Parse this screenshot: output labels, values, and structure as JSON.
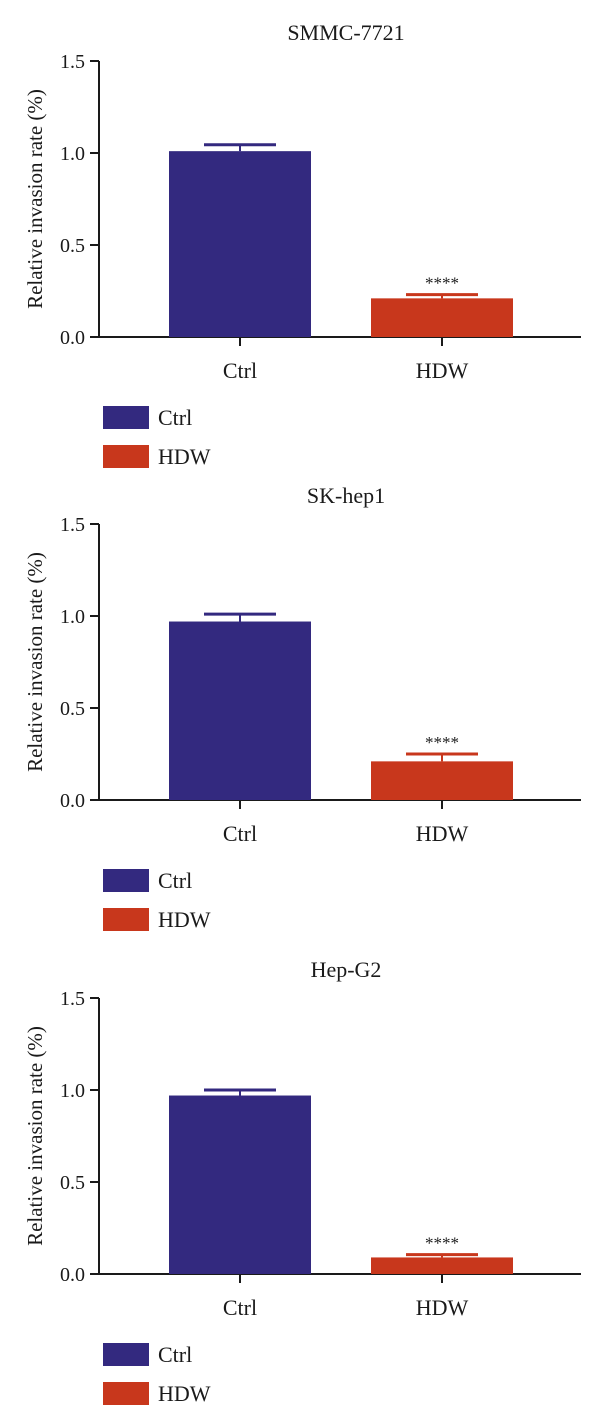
{
  "chart_data": [
    {
      "type": "bar",
      "title": "SMMC-7721",
      "ylabel": "Relative invasion rate (%)",
      "categories": [
        "Ctrl",
        "HDW"
      ],
      "values": [
        1.01,
        0.21
      ],
      "errors": [
        0.035,
        0.02
      ],
      "significance": [
        "",
        "****"
      ],
      "ylim": [
        0,
        1.5
      ],
      "yticks": [
        "0.0",
        "0.5",
        "1.0",
        "1.5"
      ],
      "legend": [
        "Ctrl",
        "HDW"
      ],
      "legend_position": "bottom-left"
    },
    {
      "type": "bar",
      "title": "SK-hep1",
      "ylabel": "Relative invasion rate (%)",
      "categories": [
        "Ctrl",
        "HDW"
      ],
      "values": [
        0.97,
        0.21
      ],
      "errors": [
        0.04,
        0.04
      ],
      "significance": [
        "",
        "****"
      ],
      "ylim": [
        0,
        1.5
      ],
      "yticks": [
        "0.0",
        "0.5",
        "1.0",
        "1.5"
      ],
      "legend": [
        "Ctrl",
        "HDW"
      ],
      "legend_position": "bottom-left"
    },
    {
      "type": "bar",
      "title": "Hep-G2",
      "ylabel": "Relative invasion rate (%)",
      "categories": [
        "Ctrl",
        "HDW"
      ],
      "values": [
        0.97,
        0.09
      ],
      "errors": [
        0.03,
        0.015
      ],
      "significance": [
        "",
        "****"
      ],
      "ylim": [
        0,
        1.5
      ],
      "yticks": [
        "0.0",
        "0.5",
        "1.0",
        "1.5"
      ],
      "legend": [
        "Ctrl",
        "HDW"
      ],
      "legend_position": "bottom-left"
    }
  ],
  "colors": {
    "ctrl": "#33297f",
    "hdw": "#c8371c",
    "axis": "#1a1a1a"
  }
}
